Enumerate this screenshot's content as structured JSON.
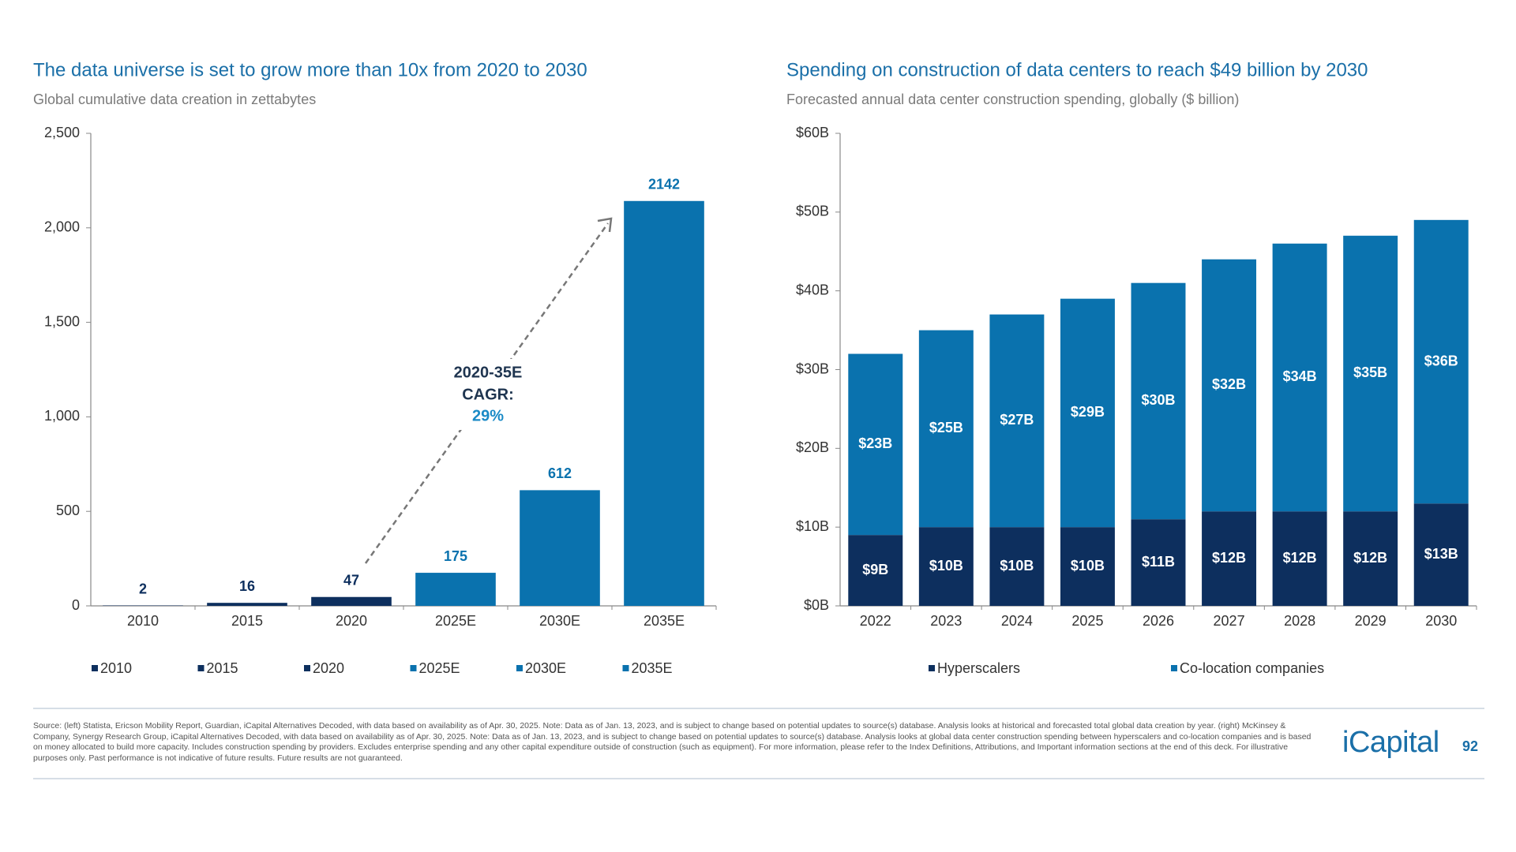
{
  "chart_data": [
    {
      "type": "bar",
      "title": "The data universe is set to grow more than 10x from 2020 to 2030",
      "subtitle": "Global cumulative data creation in zettabytes",
      "categories": [
        "2010",
        "2015",
        "2020",
        "2025E",
        "2030E",
        "2035E"
      ],
      "values": [
        2,
        16,
        47,
        175,
        612,
        2142
      ],
      "colors": [
        "#0d2f5e",
        "#0d2f5e",
        "#0d2f5e",
        "#0a72ae",
        "#0a72ae",
        "#0a72ae"
      ],
      "ylim": [
        0,
        2500
      ],
      "yticks": [
        0,
        500,
        {
          "value": 1000,
          "label": "1,000"
        },
        {
          "value": 1500,
          "label": "1,500"
        },
        {
          "value": 2000,
          "label": "2,000"
        },
        {
          "value": 2500,
          "label": "2,500"
        }
      ],
      "legend": "bottom",
      "annotation": {
        "lines": [
          "2020-35E",
          "CAGR:"
        ],
        "highlight": "29%"
      }
    },
    {
      "type": "stacked_bar",
      "title": "Spending on construction of data centers to reach $49 billion by 2030",
      "subtitle": "Forecasted annual data center construction spending, globally ($ billion)",
      "categories": [
        "2022",
        "2023",
        "2024",
        "2025",
        "2026",
        "2027",
        "2028",
        "2029",
        "2030"
      ],
      "series": [
        {
          "name": "Hyperscalers",
          "color": "#0d2f5e",
          "values": [
            9,
            10,
            10,
            10,
            11,
            12,
            12,
            12,
            13
          ],
          "value_labels": [
            "$9B",
            "$10B",
            "$10B",
            "$10B",
            "$11B",
            "$12B",
            "$12B",
            "$12B",
            "$13B"
          ]
        },
        {
          "name": "Co-location companies",
          "color": "#0a72ae",
          "values": [
            23,
            25,
            27,
            29,
            30,
            32,
            34,
            35,
            36
          ],
          "value_labels": [
            "$23B",
            "$25B",
            "$27B",
            "$29B",
            "$30B",
            "$32B",
            "$34B",
            "$35B",
            "$36B"
          ]
        }
      ],
      "ylim": [
        0,
        60
      ],
      "yticks": [
        {
          "value": 0,
          "label": "$0B"
        },
        {
          "value": 10,
          "label": "$10B"
        },
        {
          "value": 20,
          "label": "$20B"
        },
        {
          "value": 30,
          "label": "$30B"
        },
        {
          "value": 40,
          "label": "$40B"
        },
        {
          "value": 50,
          "label": "$50B"
        },
        {
          "value": 60,
          "label": "$60B"
        }
      ],
      "legend": "bottom"
    }
  ],
  "footer": {
    "source": "Source: (left) Statista, Ericson Mobility Report, Guardian, iCapital Alternatives Decoded, with data based on availability as of Apr. 30, 2025. Note: Data as of Jan. 13, 2023, and is subject to change based on potential updates to source(s) database. Analysis looks at historical and forecasted total global data creation by year. (right) McKinsey & Company, Synergy Research Group, iCapital Alternatives Decoded, with data based on availability as of Apr. 30, 2025. Note: Data as of Jan. 13, 2023, and is subject to change based on potential updates to source(s) database. Analysis looks at global data center construction spending between hyperscalers and co-location companies and is based on money allocated to build more capacity. Includes construction spending by providers. Excludes enterprise spending and any other capital expenditure outside of construction (such as equipment). For more information, please refer to the Index Definitions, Attributions, and Important information sections at the end of this deck. For illustrative purposes only. Past performance is not indicative of future results. Future results are not guaranteed.",
    "logo": "iCapital",
    "page_number": "92"
  }
}
